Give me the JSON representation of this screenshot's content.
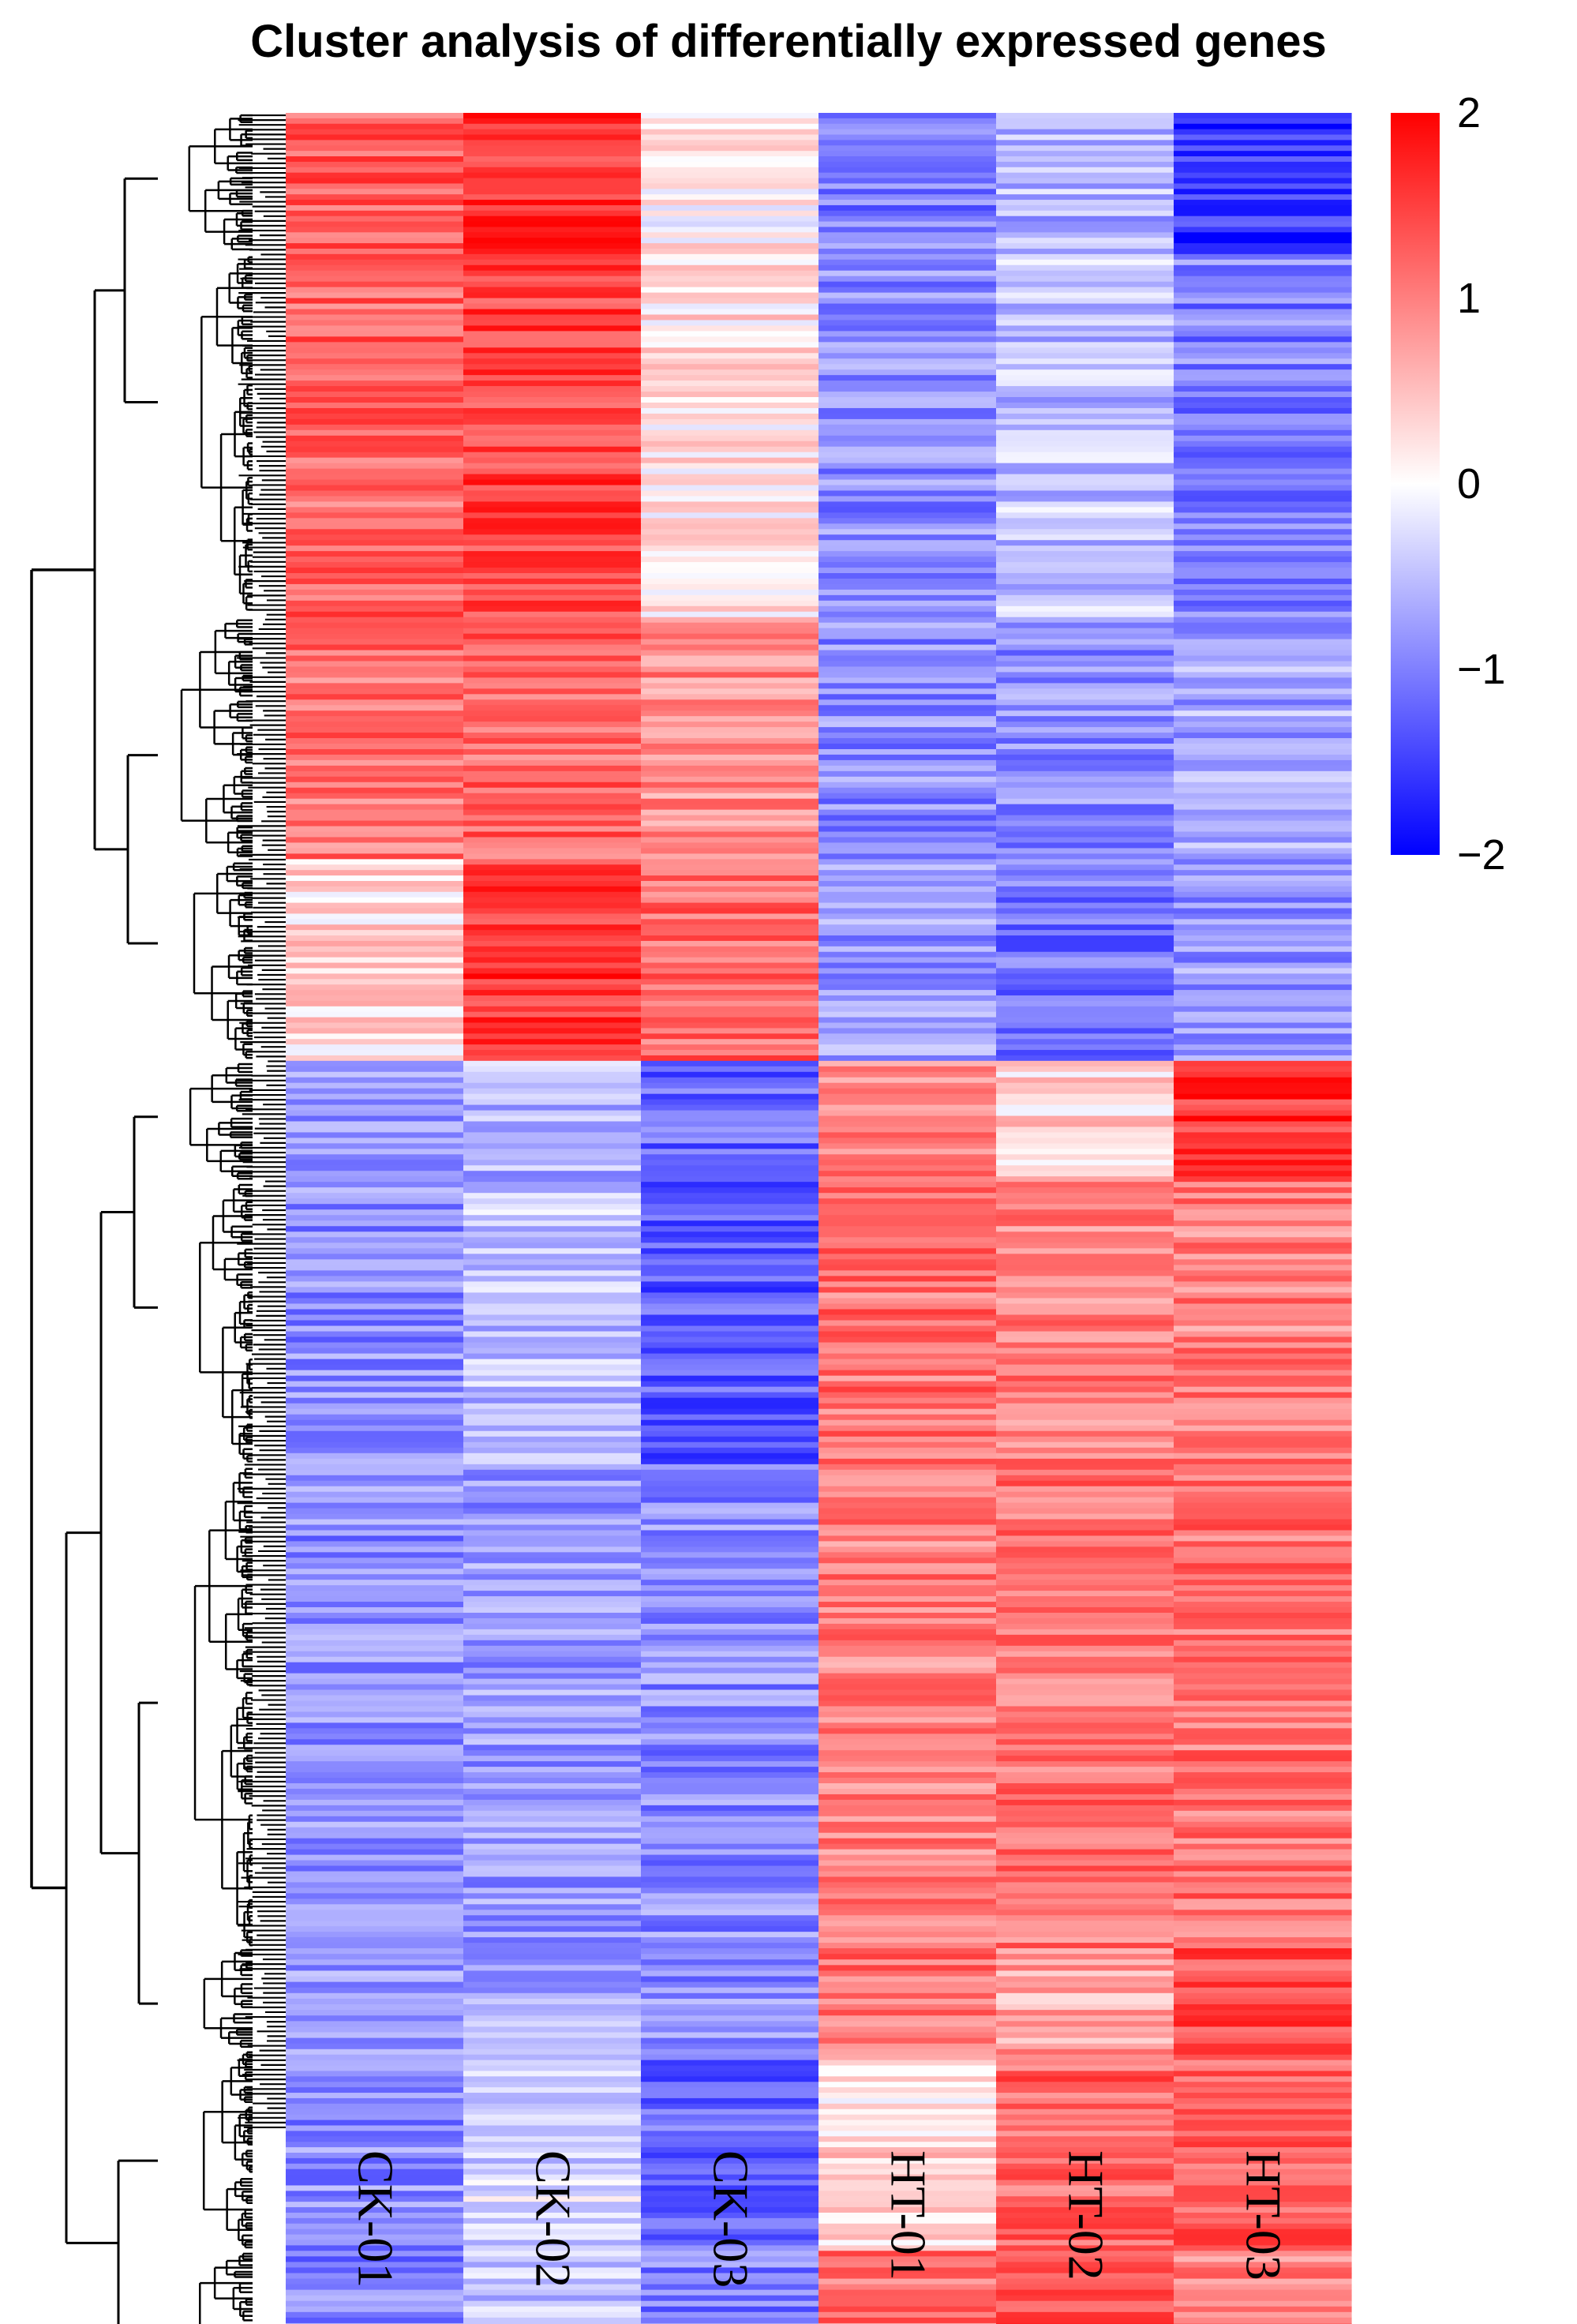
{
  "chart_data": {
    "type": "heatmap",
    "title": "Cluster analysis of differentially expressed genes",
    "columns": [
      "CK-01",
      "CK-02",
      "CK-03",
      "HT-01",
      "HT-02",
      "HT-03"
    ],
    "scale": {
      "min": -2,
      "max": 2,
      "ticks": [
        "2",
        "1",
        "0",
        "−1",
        "−2"
      ],
      "tick_values": [
        2,
        1,
        0,
        -1,
        -2
      ]
    },
    "colors": {
      "low": "#0000ff",
      "mid": "#ffffff",
      "high": "#ff0000"
    },
    "row_groups": [
      {
        "fraction": 0.07,
        "values": [
          1.3,
          1.6,
          0.1,
          -1.0,
          -0.6,
          -1.6
        ]
      },
      {
        "fraction": 0.18,
        "values": [
          1.2,
          1.5,
          0.2,
          -0.9,
          -0.5,
          -1.0
        ]
      },
      {
        "fraction": 0.12,
        "values": [
          1.1,
          1.2,
          0.9,
          -0.9,
          -0.9,
          -0.7
        ]
      },
      {
        "fraction": 0.1,
        "values": [
          0.3,
          1.6,
          1.2,
          -0.8,
          -1.1,
          -0.8
        ]
      },
      {
        "fraction": 0.06,
        "values": [
          -0.8,
          -0.6,
          -1.2,
          1.0,
          0.3,
          1.6
        ]
      },
      {
        "fraction": 0.14,
        "values": [
          -0.9,
          -0.5,
          -1.3,
          1.1,
          1.0,
          1.0
        ]
      },
      {
        "fraction": 0.24,
        "values": [
          -0.9,
          -0.8,
          -0.9,
          1.0,
          1.1,
          1.1
        ]
      },
      {
        "fraction": 0.05,
        "values": [
          -0.8,
          -0.7,
          -0.9,
          1.1,
          0.7,
          1.4
        ]
      },
      {
        "fraction": 0.1,
        "values": [
          -0.9,
          -0.3,
          -1.2,
          0.3,
          1.2,
          1.2
        ]
      },
      {
        "fraction": 0.08,
        "values": [
          -1.0,
          -0.5,
          -1.0,
          1.1,
          1.3,
          0.9
        ]
      }
    ],
    "row_dendrogram": "left",
    "legend": "colorbar-top-right"
  }
}
